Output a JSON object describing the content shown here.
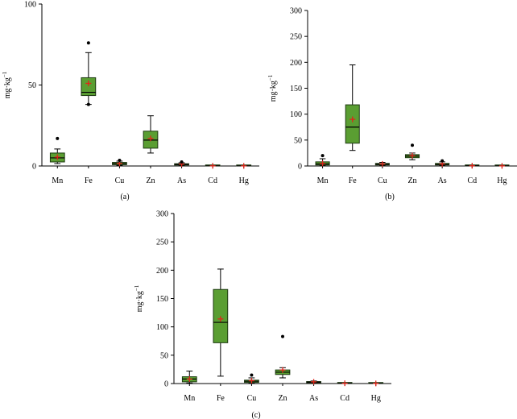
{
  "colors": {
    "box_fill": "#5a9e32",
    "mean_marker": "#e1251b",
    "outlier": "#000000"
  },
  "chart_data": [
    {
      "type": "box",
      "caption": "(a)",
      "ylabel_base": "mg·kg",
      "ylabel_exp": "−1",
      "ylim": [
        0,
        100
      ],
      "yticks": [
        "0",
        "50",
        "100"
      ],
      "categories": [
        "Mn",
        "Fe",
        "Cu",
        "Zn",
        "As",
        "Cd",
        "Hg"
      ],
      "boxes": [
        {
          "whisker_low": 1.5,
          "q1": 2.5,
          "median": 5,
          "q3": 8,
          "whisker_high": 10.5,
          "mean": 5.5,
          "outliers": [
            17
          ]
        },
        {
          "whisker_low": 38,
          "q1": 43.5,
          "median": 45.5,
          "q3": 54.5,
          "whisker_high": 70,
          "mean": 51,
          "outliers": [
            76,
            38
          ]
        },
        {
          "whisker_low": 0.5,
          "q1": 0.8,
          "median": 1.5,
          "q3": 2.2,
          "whisker_high": 3,
          "mean": 1.6,
          "outliers": [
            3.5
          ]
        },
        {
          "whisker_low": 8,
          "q1": 11,
          "median": 16,
          "q3": 21.5,
          "whisker_high": 31,
          "mean": 17,
          "outliers": []
        },
        {
          "whisker_low": 0.3,
          "q1": 0.6,
          "median": 1,
          "q3": 1.4,
          "whisker_high": 2,
          "mean": 1.2,
          "outliers": [
            2.5
          ]
        },
        {
          "whisker_low": 0,
          "q1": 0.05,
          "median": 0.1,
          "q3": 0.15,
          "whisker_high": 0.2,
          "mean": 0.1,
          "outliers": []
        },
        {
          "whisker_low": 0,
          "q1": 0.03,
          "median": 0.05,
          "q3": 0.08,
          "whisker_high": 0.1,
          "mean": 0.06,
          "outliers": []
        }
      ]
    },
    {
      "type": "box",
      "caption": "(b)",
      "ylabel_base": "mg·kg",
      "ylabel_exp": "−1",
      "ylim": [
        0,
        300
      ],
      "yticks": [
        "0",
        "50",
        "100",
        "150",
        "200",
        "250",
        "300"
      ],
      "categories": [
        "Mn",
        "Fe",
        "Cu",
        "Zn",
        "As",
        "Cd",
        "Hg"
      ],
      "boxes": [
        {
          "whisker_low": 1,
          "q1": 2,
          "median": 4,
          "q3": 8,
          "whisker_high": 14,
          "mean": 5,
          "outliers": [
            20
          ]
        },
        {
          "whisker_low": 30,
          "q1": 44,
          "median": 75,
          "q3": 118,
          "whisker_high": 195,
          "mean": 90,
          "outliers": []
        },
        {
          "whisker_low": 1,
          "q1": 2,
          "median": 3.5,
          "q3": 5,
          "whisker_high": 7,
          "mean": 4,
          "outliers": []
        },
        {
          "whisker_low": 12,
          "q1": 16,
          "median": 19,
          "q3": 22,
          "whisker_high": 25,
          "mean": 20,
          "outliers": [
            40
          ]
        },
        {
          "whisker_low": 1,
          "q1": 2,
          "median": 3,
          "q3": 5,
          "whisker_high": 8,
          "mean": 4,
          "outliers": [
            10
          ]
        },
        {
          "whisker_low": 0,
          "q1": 0.2,
          "median": 0.4,
          "q3": 0.6,
          "whisker_high": 0.8,
          "mean": 0.5,
          "outliers": []
        },
        {
          "whisker_low": 0,
          "q1": 0.1,
          "median": 0.2,
          "q3": 0.3,
          "whisker_high": 0.5,
          "mean": 0.2,
          "outliers": []
        }
      ]
    },
    {
      "type": "box",
      "caption": "(c)",
      "ylabel_base": "mg·kg",
      "ylabel_exp": "−1",
      "ylim": [
        0,
        300
      ],
      "yticks": [
        "0",
        "50",
        "100",
        "150",
        "200",
        "250",
        "300"
      ],
      "categories": [
        "Mn",
        "Fe",
        "Cu",
        "Zn",
        "As",
        "Cd",
        "Hg"
      ],
      "boxes": [
        {
          "whisker_low": 1,
          "q1": 3,
          "median": 8,
          "q3": 12,
          "whisker_high": 22,
          "mean": 8,
          "outliers": []
        },
        {
          "whisker_low": 13,
          "q1": 72,
          "median": 108,
          "q3": 166,
          "whisker_high": 202,
          "mean": 114,
          "outliers": []
        },
        {
          "whisker_low": 1,
          "q1": 2,
          "median": 4,
          "q3": 6,
          "whisker_high": 10,
          "mean": 5,
          "outliers": [
            15
          ]
        },
        {
          "whisker_low": 10,
          "q1": 16,
          "median": 20,
          "q3": 24,
          "whisker_high": 28,
          "mean": 24,
          "outliers": [
            83
          ]
        },
        {
          "whisker_low": 1,
          "q1": 1.5,
          "median": 2.5,
          "q3": 3.5,
          "whisker_high": 4.5,
          "mean": 3,
          "outliers": []
        },
        {
          "whisker_low": 0,
          "q1": 0.2,
          "median": 0.4,
          "q3": 0.6,
          "whisker_high": 0.8,
          "mean": 0.5,
          "outliers": []
        },
        {
          "whisker_low": 0,
          "q1": 0.1,
          "median": 0.2,
          "q3": 0.3,
          "whisker_high": 0.5,
          "mean": 0.2,
          "outliers": []
        }
      ]
    }
  ]
}
